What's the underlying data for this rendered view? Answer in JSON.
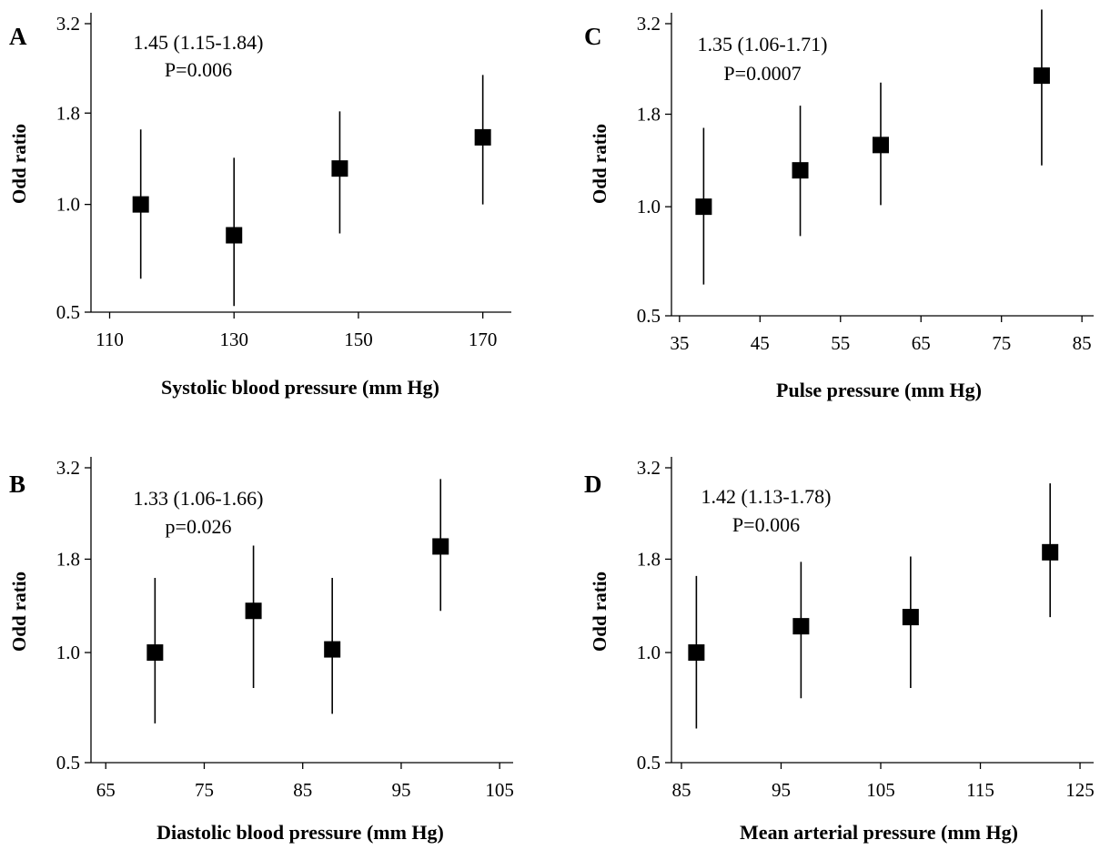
{
  "chart_data": [
    {
      "type": "scatter",
      "panel": "A",
      "xlabel": "Systolic blood pressure (mm Hg)",
      "ylabel": "Odd ratio",
      "annotation": [
        "1.45 (1.15-1.84)",
        "P=0.006"
      ],
      "xlim": [
        107,
        174
      ],
      "xticks": [
        110,
        130,
        150,
        170
      ],
      "yscale": "log",
      "ylim": [
        0.5,
        3.2
      ],
      "yticks": [
        {
          "value": 0.5,
          "label": "0.5"
        },
        {
          "value": 1.0,
          "label": "1.0"
        },
        {
          "value": 1.8,
          "label": "1.8"
        },
        {
          "value": 3.2,
          "label": "3.2"
        }
      ],
      "grid": false,
      "points": [
        {
          "x": 115,
          "y": 1.0,
          "lo": 0.62,
          "hi": 1.62
        },
        {
          "x": 130,
          "y": 0.82,
          "lo": 0.52,
          "hi": 1.35
        },
        {
          "x": 147,
          "y": 1.26,
          "lo": 0.83,
          "hi": 1.82
        },
        {
          "x": 170,
          "y": 1.54,
          "lo": 1.0,
          "hi": 2.3
        }
      ]
    },
    {
      "type": "scatter",
      "panel": "C",
      "xlabel": "Pulse pressure (mm Hg)",
      "ylabel": "Odd ratio",
      "annotation": [
        "1.35 (1.06-1.71)",
        "P=0.0007"
      ],
      "xlim": [
        34,
        86
      ],
      "xticks": [
        35,
        45,
        55,
        65,
        75,
        85
      ],
      "yscale": "log",
      "ylim": [
        0.5,
        3.2
      ],
      "yticks": [
        {
          "value": 0.5,
          "label": "0.5"
        },
        {
          "value": 1.0,
          "label": "1.0"
        },
        {
          "value": 1.8,
          "label": "1.8"
        },
        {
          "value": 3.2,
          "label": "3.2"
        }
      ],
      "grid": false,
      "points": [
        {
          "x": 38,
          "y": 1.0,
          "lo": 0.61,
          "hi": 1.65
        },
        {
          "x": 50,
          "y": 1.26,
          "lo": 0.83,
          "hi": 1.9
        },
        {
          "x": 60,
          "y": 1.48,
          "lo": 1.01,
          "hi": 2.2
        },
        {
          "x": 80,
          "y": 2.3,
          "lo": 1.3,
          "hi": 3.5
        }
      ]
    },
    {
      "type": "scatter",
      "panel": "B",
      "xlabel": "Diastolic blood pressure (mm Hg)",
      "ylabel": "Odd ratio",
      "annotation": [
        "1.33 (1.06-1.66)",
        "p=0.026"
      ],
      "xlim": [
        63.5,
        106
      ],
      "xticks": [
        65,
        75,
        85,
        95,
        105
      ],
      "yscale": "log",
      "ylim": [
        0.5,
        3.2
      ],
      "yticks": [
        {
          "value": 0.5,
          "label": "0.5"
        },
        {
          "value": 1.0,
          "label": "1.0"
        },
        {
          "value": 1.8,
          "label": "1.8"
        },
        {
          "value": 3.2,
          "label": "3.2"
        }
      ],
      "grid": false,
      "points": [
        {
          "x": 70,
          "y": 1.0,
          "lo": 0.64,
          "hi": 1.6
        },
        {
          "x": 80,
          "y": 1.3,
          "lo": 0.8,
          "hi": 1.96
        },
        {
          "x": 88,
          "y": 1.02,
          "lo": 0.68,
          "hi": 1.6
        },
        {
          "x": 99,
          "y": 1.95,
          "lo": 1.3,
          "hi": 2.98
        }
      ]
    },
    {
      "type": "scatter",
      "panel": "D",
      "xlabel": "Mean arterial pressure (mm Hg)",
      "ylabel": "Odd ratio",
      "annotation": [
        "1.42 (1.13-1.78)",
        "P=0.006"
      ],
      "xlim": [
        84,
        126
      ],
      "xticks": [
        85,
        95,
        105,
        115,
        125
      ],
      "yscale": "log",
      "ylim": [
        0.5,
        3.2
      ],
      "yticks": [
        {
          "value": 0.5,
          "label": "0.5"
        },
        {
          "value": 1.0,
          "label": "1.0"
        },
        {
          "value": 1.8,
          "label": "1.8"
        },
        {
          "value": 3.2,
          "label": "3.2"
        }
      ],
      "grid": false,
      "points": [
        {
          "x": 86.5,
          "y": 1.0,
          "lo": 0.62,
          "hi": 1.62
        },
        {
          "x": 97,
          "y": 1.18,
          "lo": 0.75,
          "hi": 1.77
        },
        {
          "x": 108,
          "y": 1.25,
          "lo": 0.8,
          "hi": 1.83
        },
        {
          "x": 122,
          "y": 1.88,
          "lo": 1.25,
          "hi": 2.9
        }
      ]
    }
  ]
}
